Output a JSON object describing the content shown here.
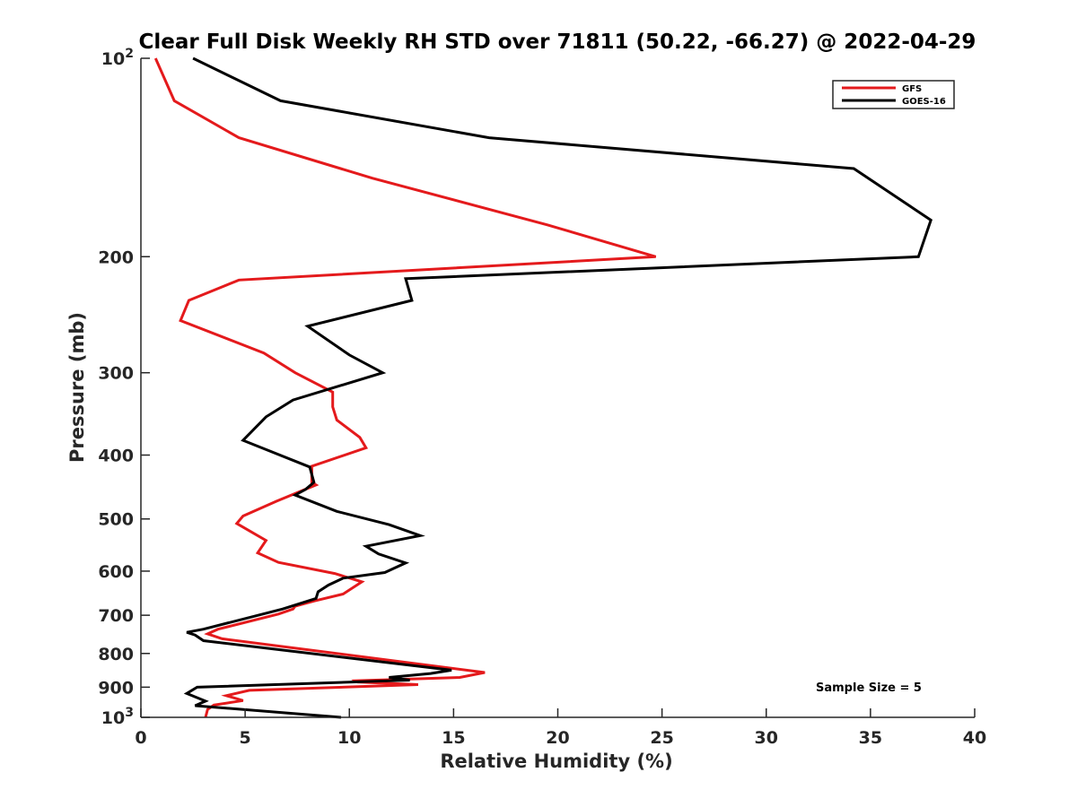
{
  "chart_data": {
    "type": "line",
    "title": "Clear Full Disk Weekly RH STD over 71811 (50.22, -66.27) @ 2022-04-29",
    "xlabel": "Relative Humidity (%)",
    "ylabel": "Pressure (mb)",
    "xlim": [
      0,
      40
    ],
    "ylim": [
      100,
      1000
    ],
    "y_scale": "log",
    "y_reversed": true,
    "grid": false,
    "legend_position": "top-right",
    "x_ticks": [
      "0",
      "5",
      "10",
      "15",
      "20",
      "25",
      "30",
      "35",
      "40"
    ],
    "y_ticks": [
      {
        "value": 100,
        "label": "10",
        "sup": "2"
      },
      {
        "value": 200,
        "label": "200",
        "sup": ""
      },
      {
        "value": 300,
        "label": "300",
        "sup": ""
      },
      {
        "value": 400,
        "label": "400",
        "sup": ""
      },
      {
        "value": 500,
        "label": "500",
        "sup": ""
      },
      {
        "value": 600,
        "label": "600",
        "sup": ""
      },
      {
        "value": 700,
        "label": "700",
        "sup": ""
      },
      {
        "value": 800,
        "label": "800",
        "sup": ""
      },
      {
        "value": 900,
        "label": "900",
        "sup": ""
      },
      {
        "value": 1000,
        "label": "10",
        "sup": "3"
      }
    ],
    "series": [
      {
        "name": "GFS",
        "color": "#e41a1c",
        "x": [
          0.7,
          1.6,
          4.7,
          11.1,
          19.5,
          24.7,
          4.7,
          2.3,
          1.9,
          5.9,
          7.4,
          9.2,
          9.2,
          9.4,
          10.5,
          10.8,
          8.2,
          8.2,
          8.4,
          6.5,
          4.9,
          4.6,
          6.0,
          5.6,
          6.6,
          9.3,
          10.6,
          9.7,
          8.3,
          7.4,
          7.3,
          6.6,
          3.7,
          3.2,
          3.9,
          16.5,
          15.3,
          10.3,
          10.4,
          13.3,
          5.2,
          4.1,
          4.9,
          3.5,
          3.2,
          3.1
        ],
        "y": [
          100,
          116,
          132,
          152,
          179,
          200,
          217,
          233,
          250,
          280,
          300,
          321,
          338,
          354,
          376,
          390,
          416,
          440,
          444,
          470,
          495,
          508,
          539,
          563,
          582,
          605,
          623,
          650,
          666,
          678,
          685,
          697,
          735,
          747,
          760,
          855,
          870,
          880,
          884,
          892,
          910,
          927,
          943,
          958,
          973,
          1000
        ]
      },
      {
        "name": "GOES-16",
        "color": "#000000",
        "x": [
          2.5,
          6.7,
          16.7,
          34.2,
          37.9,
          37.3,
          12.7,
          13.0,
          8.0,
          10.0,
          11.6,
          7.3,
          6.0,
          4.9,
          8.1,
          8.3,
          7.9,
          7.4,
          9.4,
          11.9,
          13.4,
          10.8,
          11.4,
          12.7,
          11.7,
          9.7,
          9.0,
          8.5,
          8.4,
          6.8,
          3.0,
          2.2,
          2.6,
          3.0,
          14.9,
          13.9,
          11.9,
          12.9,
          2.7,
          2.2,
          3.1,
          2.6,
          9.6
        ],
        "y": [
          100,
          116,
          132,
          147,
          176,
          200,
          216,
          233,
          255,
          282,
          300,
          330,
          350,
          380,
          417,
          440,
          451,
          460,
          487,
          510,
          530,
          550,
          565,
          583,
          603,
          615,
          630,
          645,
          660,
          685,
          735,
          743,
          750,
          765,
          848,
          858,
          870,
          878,
          900,
          920,
          945,
          960,
          1000
        ]
      }
    ],
    "annotations": [
      {
        "text": "Sample Size = 5"
      }
    ]
  }
}
